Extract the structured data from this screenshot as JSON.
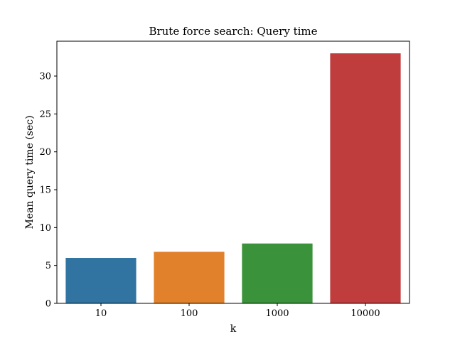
{
  "chart_data": {
    "type": "bar",
    "title": "Brute force search: Query time",
    "xlabel": "k",
    "ylabel": "Mean query time (sec)",
    "categories": [
      "10",
      "100",
      "1000",
      "10000"
    ],
    "values": [
      6.0,
      6.8,
      7.9,
      33.0
    ],
    "colors": [
      "#3274a1",
      "#e1812c",
      "#3a923a",
      "#c03d3e"
    ],
    "ylim": [
      0,
      34.6
    ],
    "yticks": [
      0,
      5,
      10,
      15,
      20,
      25,
      30
    ],
    "grid": false
  }
}
